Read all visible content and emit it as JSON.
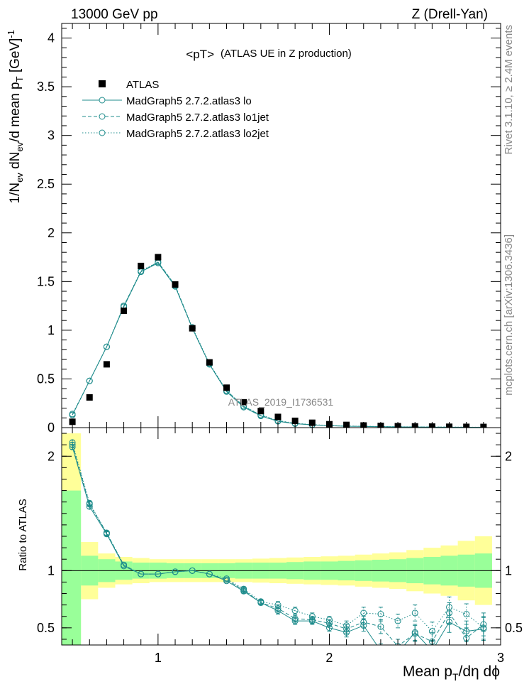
{
  "header": {
    "left": "13000 GeV pp",
    "right": "Z (Drell-Yan)"
  },
  "side_labels": {
    "rivet": "Rivet 3.1.10, ≥ 2.4M events",
    "mcplots": "mcplots.cern.ch [arXiv:1306.3436]"
  },
  "chart_data": {
    "type": "scatter",
    "title": "<pT>",
    "subtitle": "(ATLAS UE in Z production)",
    "analysis_id": "ATLAS_2019_I1736531",
    "xlabel": "Mean p_T/dη dϕ",
    "ylabel": "1/N_ev dN_ev/d mean p_T [GeV]^-1",
    "ratio_ylabel": "Ratio to ATLAS",
    "xlim": [
      0.4375,
      3.0
    ],
    "ylim": [
      0,
      4.15
    ],
    "ratio_ylim": [
      0.35,
      2.25
    ],
    "x_ticks": [
      1,
      2,
      3
    ],
    "y_ticks": [
      0,
      0.5,
      1,
      1.5,
      2,
      2.5,
      3,
      3.5,
      4
    ],
    "y_tick_labels": [
      "0",
      "0.5",
      "1",
      "1.5",
      "2",
      "2.5",
      "3",
      "3.5",
      "4"
    ],
    "ratio_ticks": [
      0.5,
      1,
      2
    ],
    "legend_placement": "top-left",
    "legend": [
      {
        "label": "ATLAS",
        "style": "square"
      },
      {
        "label": "MadGraph5 2.7.2.atlas3 lo",
        "style": "solid"
      },
      {
        "label": "MadGraph5 2.7.2.atlas3 lo1jet",
        "style": "dashed"
      },
      {
        "label": "MadGraph5 2.7.2.atlas3 lo2jet",
        "style": "dotted"
      }
    ],
    "x": [
      0.5,
      0.6,
      0.7,
      0.8,
      0.9,
      1.0,
      1.1,
      1.2,
      1.3,
      1.4,
      1.5,
      1.6,
      1.7,
      1.8,
      1.9,
      2.0,
      2.1,
      2.2,
      2.3,
      2.4,
      2.5,
      2.6,
      2.7,
      2.8,
      2.9
    ],
    "data": [
      0.06,
      0.31,
      0.65,
      1.2,
      1.66,
      1.75,
      1.47,
      1.02,
      0.67,
      0.41,
      0.26,
      0.17,
      0.11,
      0.07,
      0.05,
      0.035,
      0.028,
      0.022,
      0.018,
      0.015,
      0.013,
      0.011,
      0.009,
      0.008,
      0.007
    ],
    "band_x_edges": [
      0.4375,
      0.55,
      0.65,
      0.75,
      0.85,
      0.95,
      1.05,
      1.15,
      1.25,
      1.35,
      1.45,
      1.55,
      1.65,
      1.75,
      1.85,
      1.95,
      2.05,
      2.15,
      2.25,
      2.35,
      2.45,
      2.55,
      2.65,
      2.75,
      2.85,
      2.95
    ],
    "band_green": [
      0.7,
      0.13,
      0.1,
      0.08,
      0.07,
      0.07,
      0.065,
      0.065,
      0.065,
      0.065,
      0.07,
      0.07,
      0.07,
      0.075,
      0.08,
      0.08,
      0.085,
      0.09,
      0.095,
      0.1,
      0.11,
      0.12,
      0.13,
      0.14,
      0.15
    ],
    "band_yellow": [
      1.2,
      0.25,
      0.15,
      0.12,
      0.11,
      0.1,
      0.1,
      0.1,
      0.1,
      0.1,
      0.1,
      0.105,
      0.11,
      0.115,
      0.12,
      0.125,
      0.13,
      0.14,
      0.15,
      0.16,
      0.18,
      0.2,
      0.22,
      0.26,
      0.3
    ],
    "series": [
      {
        "name": "MadGraph5 2.7.2.atlas3 lo",
        "style": "solid",
        "values": [
          0.13,
          0.48,
          0.83,
          1.24,
          1.6,
          1.69,
          1.45,
          1.02,
          0.65,
          0.37,
          0.21,
          0.12,
          0.065,
          0.04,
          0.028,
          0.02,
          0.014,
          0.012,
          0.009,
          0.007,
          0.006,
          0.005,
          0.004,
          0.004,
          0.004
        ],
        "ratio": [
          2.08,
          1.56,
          1.32,
          1.04,
          0.97,
          0.97,
          0.99,
          1.0,
          0.97,
          0.91,
          0.82,
          0.72,
          0.65,
          0.56,
          0.56,
          0.5,
          0.46,
          0.52,
          0.3,
          0.28,
          0.46,
          0.3,
          0.55,
          0.47,
          0.49
        ],
        "ratio_err": [
          0.02,
          0.02,
          0.02,
          0.01,
          0.01,
          0.01,
          0.01,
          0.01,
          0.01,
          0.01,
          0.02,
          0.02,
          0.03,
          0.03,
          0.03,
          0.03,
          0.04,
          0.05,
          0.06,
          0.06,
          0.07,
          0.08,
          0.09,
          0.09,
          0.1
        ]
      },
      {
        "name": "MadGraph5 2.7.2.atlas3 lo1jet",
        "style": "dashed",
        "values": [
          0.13,
          0.48,
          0.83,
          1.25,
          1.6,
          1.7,
          1.46,
          1.02,
          0.65,
          0.38,
          0.22,
          0.125,
          0.07,
          0.042,
          0.029,
          0.021,
          0.015,
          0.013,
          0.01,
          0.008,
          0.007,
          0.006,
          0.005,
          0.004,
          0.004
        ],
        "ratio": [
          2.1,
          1.58,
          1.33,
          1.05,
          0.97,
          0.97,
          0.99,
          1.0,
          0.97,
          0.92,
          0.83,
          0.72,
          0.67,
          0.58,
          0.57,
          0.54,
          0.49,
          0.55,
          0.51,
          0.34,
          0.45,
          0.38,
          0.63,
          0.41,
          0.53
        ],
        "ratio_err": [
          0.02,
          0.02,
          0.02,
          0.01,
          0.01,
          0.01,
          0.01,
          0.01,
          0.01,
          0.01,
          0.02,
          0.02,
          0.03,
          0.03,
          0.03,
          0.03,
          0.04,
          0.05,
          0.06,
          0.06,
          0.07,
          0.08,
          0.09,
          0.09,
          0.1
        ]
      },
      {
        "name": "MadGraph5 2.7.2.atlas3 lo2jet",
        "style": "dotted",
        "values": [
          0.14,
          0.48,
          0.83,
          1.25,
          1.61,
          1.7,
          1.46,
          1.03,
          0.66,
          0.38,
          0.22,
          0.13,
          0.072,
          0.045,
          0.031,
          0.022,
          0.016,
          0.014,
          0.011,
          0.009,
          0.008,
          0.007,
          0.006,
          0.005,
          0.005
        ],
        "ratio": [
          2.12,
          1.59,
          1.33,
          1.05,
          0.97,
          0.97,
          0.99,
          1.0,
          0.97,
          0.93,
          0.84,
          0.73,
          0.7,
          0.65,
          0.6,
          0.57,
          0.52,
          0.63,
          0.62,
          0.56,
          0.63,
          0.47,
          0.68,
          0.62,
          0.5
        ],
        "ratio_err": [
          0.02,
          0.02,
          0.02,
          0.01,
          0.01,
          0.01,
          0.01,
          0.01,
          0.01,
          0.01,
          0.02,
          0.02,
          0.03,
          0.03,
          0.03,
          0.03,
          0.04,
          0.05,
          0.06,
          0.06,
          0.07,
          0.08,
          0.09,
          0.09,
          0.1
        ]
      }
    ],
    "colors": {
      "data": "#000000",
      "mc": "#1f8c8c",
      "band_green": "#99ff99",
      "band_yellow": "#ffff99"
    }
  }
}
